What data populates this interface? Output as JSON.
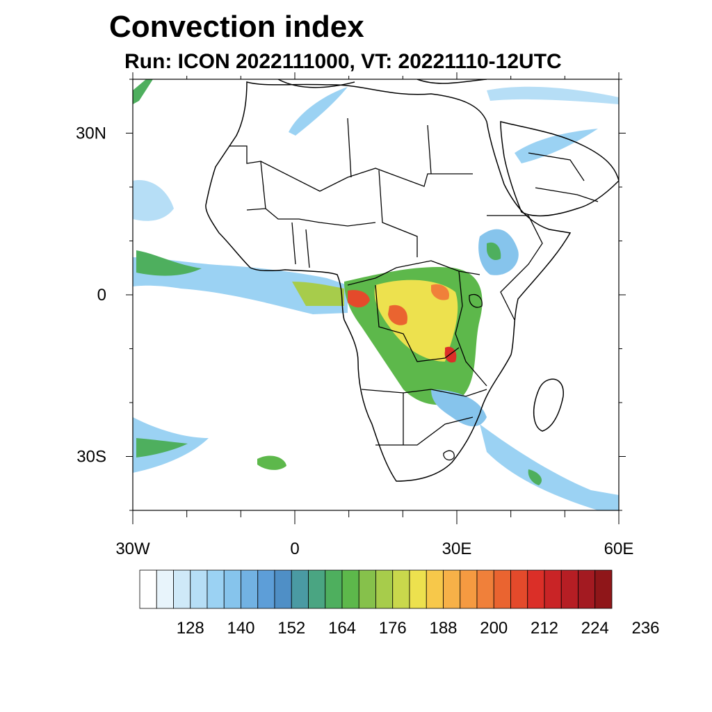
{
  "title": "Convection index",
  "subtitle": "Run: ICON 2022111000,  VT: 20221110-12UTC",
  "map": {
    "lon_range": [
      -30,
      60
    ],
    "lat_range": [
      -40,
      40
    ],
    "lat_ticks": [
      {
        "value": 30,
        "label": "30N"
      },
      {
        "value": 0,
        "label": "0"
      },
      {
        "value": -30,
        "label": "30S"
      }
    ],
    "lon_ticks": [
      {
        "value": -30,
        "label": "30W"
      },
      {
        "value": 0,
        "label": "0"
      },
      {
        "value": 30,
        "label": "30E"
      },
      {
        "value": 60,
        "label": "60E"
      }
    ],
    "minor_lat_ticks": [
      40,
      20,
      10,
      -10,
      -20,
      -40
    ],
    "minor_lon_ticks": [
      -20,
      -10,
      10,
      20,
      40,
      50
    ]
  },
  "colorbar": {
    "colors": [
      "#ffffff",
      "#e8f4fb",
      "#cfe9f8",
      "#b6def6",
      "#9bd2f3",
      "#86c4ec",
      "#72b2e3",
      "#5d9ed8",
      "#4f8fc6",
      "#4a9aa3",
      "#4aa582",
      "#4eaf5e",
      "#5db84b",
      "#86c14b",
      "#a7cc4b",
      "#c9d84c",
      "#ede14e",
      "#f7c84a",
      "#f7b148",
      "#f59a41",
      "#f0803a",
      "#ea6430",
      "#e44a2b",
      "#db2f28",
      "#c92426",
      "#b61e24",
      "#a31a21",
      "#8f1619"
    ],
    "labels": [
      "128",
      "140",
      "152",
      "164",
      "176",
      "188",
      "200",
      "212",
      "224",
      "236"
    ]
  }
}
